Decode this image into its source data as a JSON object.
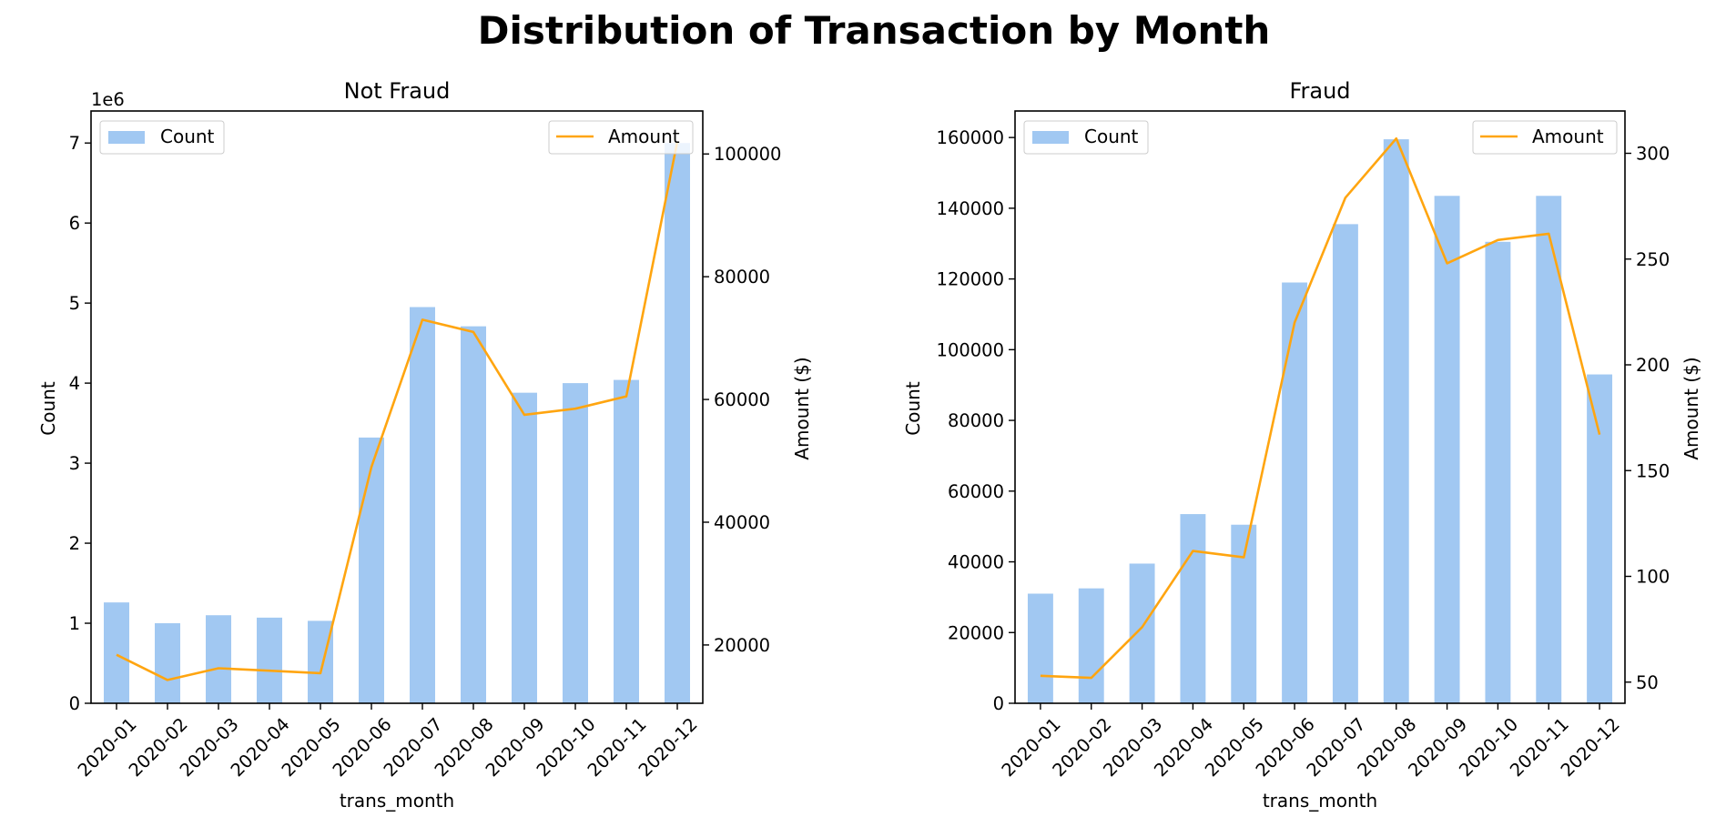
{
  "figure": {
    "suptitle": "Distribution of Transaction by Month"
  },
  "colors": {
    "bar": "#a1c8f2",
    "line": "#ffa510",
    "axis": "#000000"
  },
  "chart_data": [
    {
      "type": "bar",
      "title": "Not Fraud",
      "xlabel": "trans_month",
      "ylabel": "Count",
      "y2label": "Amount ($)",
      "y_offset_label": "1e6",
      "categories": [
        "2020-01",
        "2020-02",
        "2020-03",
        "2020-04",
        "2020-05",
        "2020-06",
        "2020-07",
        "2020-08",
        "2020-09",
        "2020-10",
        "2020-11",
        "2020-12"
      ],
      "ylim": [
        0,
        7.4
      ],
      "yticks": [
        0,
        1,
        2,
        3,
        4,
        5,
        6,
        7
      ],
      "y2lim": [
        10500,
        107000
      ],
      "y2ticks": [
        20000,
        40000,
        60000,
        80000,
        100000
      ],
      "series": [
        {
          "name": "Count",
          "kind": "bar",
          "axis": "left",
          "values": [
            1.26,
            1.0,
            1.1,
            1.07,
            1.03,
            3.32,
            4.95,
            4.71,
            3.88,
            4.0,
            4.04,
            7.0
          ]
        },
        {
          "name": "Amount",
          "kind": "line",
          "axis": "right",
          "values": [
            18400,
            14300,
            16200,
            15800,
            15400,
            49000,
            73000,
            71000,
            57500,
            58500,
            60500,
            102000
          ]
        }
      ],
      "legend": {
        "bar": "top-left",
        "line": "top-right"
      },
      "grid": false
    },
    {
      "type": "bar",
      "title": "Fraud",
      "xlabel": "trans_month",
      "ylabel": "Count",
      "y2label": "Amount ($)",
      "categories": [
        "2020-01",
        "2020-02",
        "2020-03",
        "2020-04",
        "2020-05",
        "2020-06",
        "2020-07",
        "2020-08",
        "2020-09",
        "2020-10",
        "2020-11",
        "2020-12"
      ],
      "ylim": [
        0,
        167500
      ],
      "yticks": [
        0,
        20000,
        40000,
        60000,
        80000,
        100000,
        120000,
        140000,
        160000
      ],
      "y2lim": [
        40,
        320
      ],
      "y2ticks": [
        50,
        100,
        150,
        200,
        250,
        300
      ],
      "series": [
        {
          "name": "Count",
          "kind": "bar",
          "axis": "left",
          "values": [
            31000,
            32500,
            39500,
            53500,
            50500,
            119000,
            135500,
            159500,
            143500,
            130500,
            143500,
            93000
          ]
        },
        {
          "name": "Amount",
          "kind": "line",
          "axis": "right",
          "values": [
            53,
            52,
            76,
            112,
            109,
            220,
            279,
            307,
            248,
            259,
            262,
            167
          ]
        }
      ],
      "legend": {
        "bar": "top-left",
        "line": "top-right"
      },
      "grid": false
    }
  ]
}
